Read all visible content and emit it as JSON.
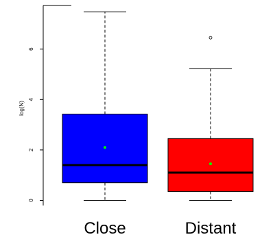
{
  "chart_data": {
    "type": "boxplot",
    "title": "",
    "xlabel": "",
    "ylabel": "log(N)",
    "ylim": [
      0,
      7.75
    ],
    "yticks": [
      "0",
      "2",
      "4",
      "6"
    ],
    "colors": {
      "axis": "#000000",
      "mean_marker": "#00ff00"
    },
    "series": [
      {
        "name": "Close",
        "color": "#0000ff",
        "min": 0,
        "q1": 0.7,
        "median": 1.4,
        "q3": 3.42,
        "max": 7.48,
        "mean": 2.1,
        "outliers": []
      },
      {
        "name": "Distant",
        "color": "#ff0000",
        "min": 0,
        "q1": 0.35,
        "median": 1.1,
        "q3": 2.45,
        "max": 5.22,
        "mean": 1.45,
        "outliers": [
          6.45
        ]
      }
    ]
  }
}
